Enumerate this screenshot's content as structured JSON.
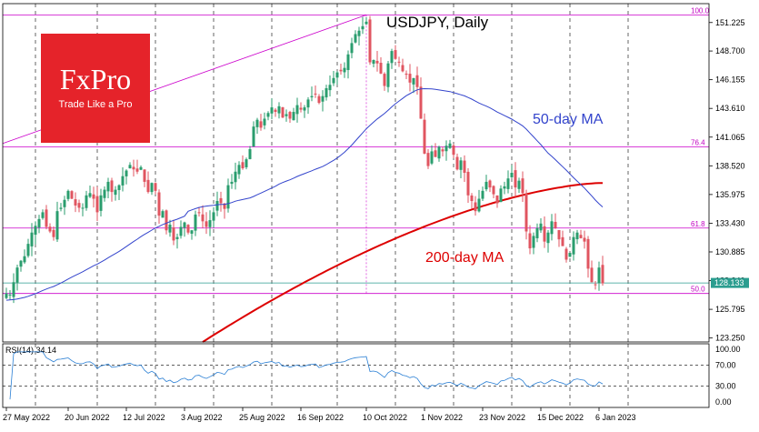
{
  "chart_data": {
    "type": "candlestick",
    "title": "USDJPY, Daily",
    "logo": {
      "brand": "FxPro",
      "tagline": "Trade Like a Pro"
    },
    "colors": {
      "up": "#2a9d6e",
      "down": "#e05560",
      "ma50": "#3344cc",
      "ma200": "#dd0000",
      "fib": "#cc00cc",
      "last": "#2a9d8f"
    },
    "price_axis": {
      "ylim": [
        122.9,
        152.9
      ],
      "ticks": [
        "151.225",
        "148.700",
        "146.155",
        "143.610",
        "141.065",
        "138.520",
        "135.975",
        "133.430",
        "130.885",
        "128.340",
        "125.795",
        "123.250"
      ]
    },
    "last_price": "128.133",
    "fib_levels": [
      {
        "label": "100.0",
        "price": 151.9
      },
      {
        "label": "76.4",
        "price": 140.2
      },
      {
        "label": "61.8",
        "price": 133.0
      },
      {
        "label": "50.0",
        "price": 127.2
      }
    ],
    "x_axis": {
      "labels": [
        "27 May 2022",
        "20 Jun 2022",
        "12 Jul 2022",
        "3 Aug 2022",
        "25 Aug 2022",
        "16 Sep 2022",
        "10 Oct 2022",
        "1 Nov 2022",
        "23 Nov 2022",
        "15 Dec 2022",
        "6 Jan 2023"
      ],
      "label_index": [
        0,
        17,
        33,
        49,
        65,
        81,
        99,
        115,
        131,
        147,
        163
      ],
      "grid_index": [
        8,
        25,
        41,
        57,
        73,
        91,
        107,
        123,
        139,
        155,
        171
      ]
    },
    "close": [
      127.2,
      127.1,
      128.2,
      129.5,
      130.1,
      130.5,
      131.6,
      132.6,
      133.2,
      133.8,
      134.4,
      133.1,
      132.7,
      132.2,
      134.5,
      134.8,
      135.5,
      136.3,
      135.6,
      135.0,
      134.8,
      134.8,
      135.9,
      136.1,
      135.6,
      134.4,
      135.9,
      136.4,
      137.1,
      136.2,
      136.4,
      136.8,
      137.6,
      138.1,
      138.6,
      138.2,
      138.0,
      138.4,
      137.1,
      136.2,
      137.0,
      136.3,
      134.1,
      134.5,
      132.8,
      133.3,
      131.9,
      132.2,
      133.1,
      133.5,
      132.6,
      132.8,
      134.2,
      134.4,
      133.6,
      133.1,
      133.7,
      134.4,
      135.4,
      135.2,
      134.7,
      136.8,
      137.1,
      138.0,
      138.6,
      138.3,
      139.1,
      140.0,
      142.0,
      142.6,
      141.9,
      142.7,
      143.2,
      143.7,
      143.3,
      143.8,
      142.8,
      143.1,
      142.7,
      143.3,
      143.9,
      143.5,
      143.7,
      144.4,
      144.7,
      144.9,
      144.1,
      144.7,
      145.4,
      145.7,
      146.3,
      146.8,
      146.9,
      147.2,
      148.4,
      149.4,
      150.2,
      150.5,
      150.9,
      151.3,
      147.7,
      147.9,
      147.6,
      146.7,
      145.6,
      147.6,
      148.7,
      148.0,
      147.7,
      146.9,
      146.6,
      145.9,
      146.3,
      145.5,
      142.7,
      139.6,
      138.5,
      139.8,
      139.3,
      140.2,
      139.8,
      140.3,
      140.5,
      139.5,
      138.2,
      139.0,
      137.9,
      135.9,
      135.4,
      134.5,
      135.6,
      136.3,
      137.1,
      136.6,
      136.0,
      135.2,
      136.5,
      136.7,
      137.4,
      137.9,
      136.6,
      137.2,
      136.1,
      132.7,
      131.2,
      132.3,
      133.0,
      133.4,
      131.8,
      132.6,
      133.6,
      133.0,
      132.0,
      131.4,
      130.2,
      130.8,
      132.2,
      132.6,
      132.1,
      131.8,
      129.4,
      128.2,
      128.0,
      129.5,
      128.1
    ],
    "ma50": {
      "name": "50-day MA"
    },
    "ma200": {
      "name": "200-day MA"
    },
    "rsi": {
      "label": "RSI(14) 34.14",
      "ylim": [
        0,
        100
      ],
      "ticks": [
        "100.00",
        "70.00",
        "30.00",
        "0.00"
      ],
      "levels": [
        70,
        30
      ]
    }
  }
}
